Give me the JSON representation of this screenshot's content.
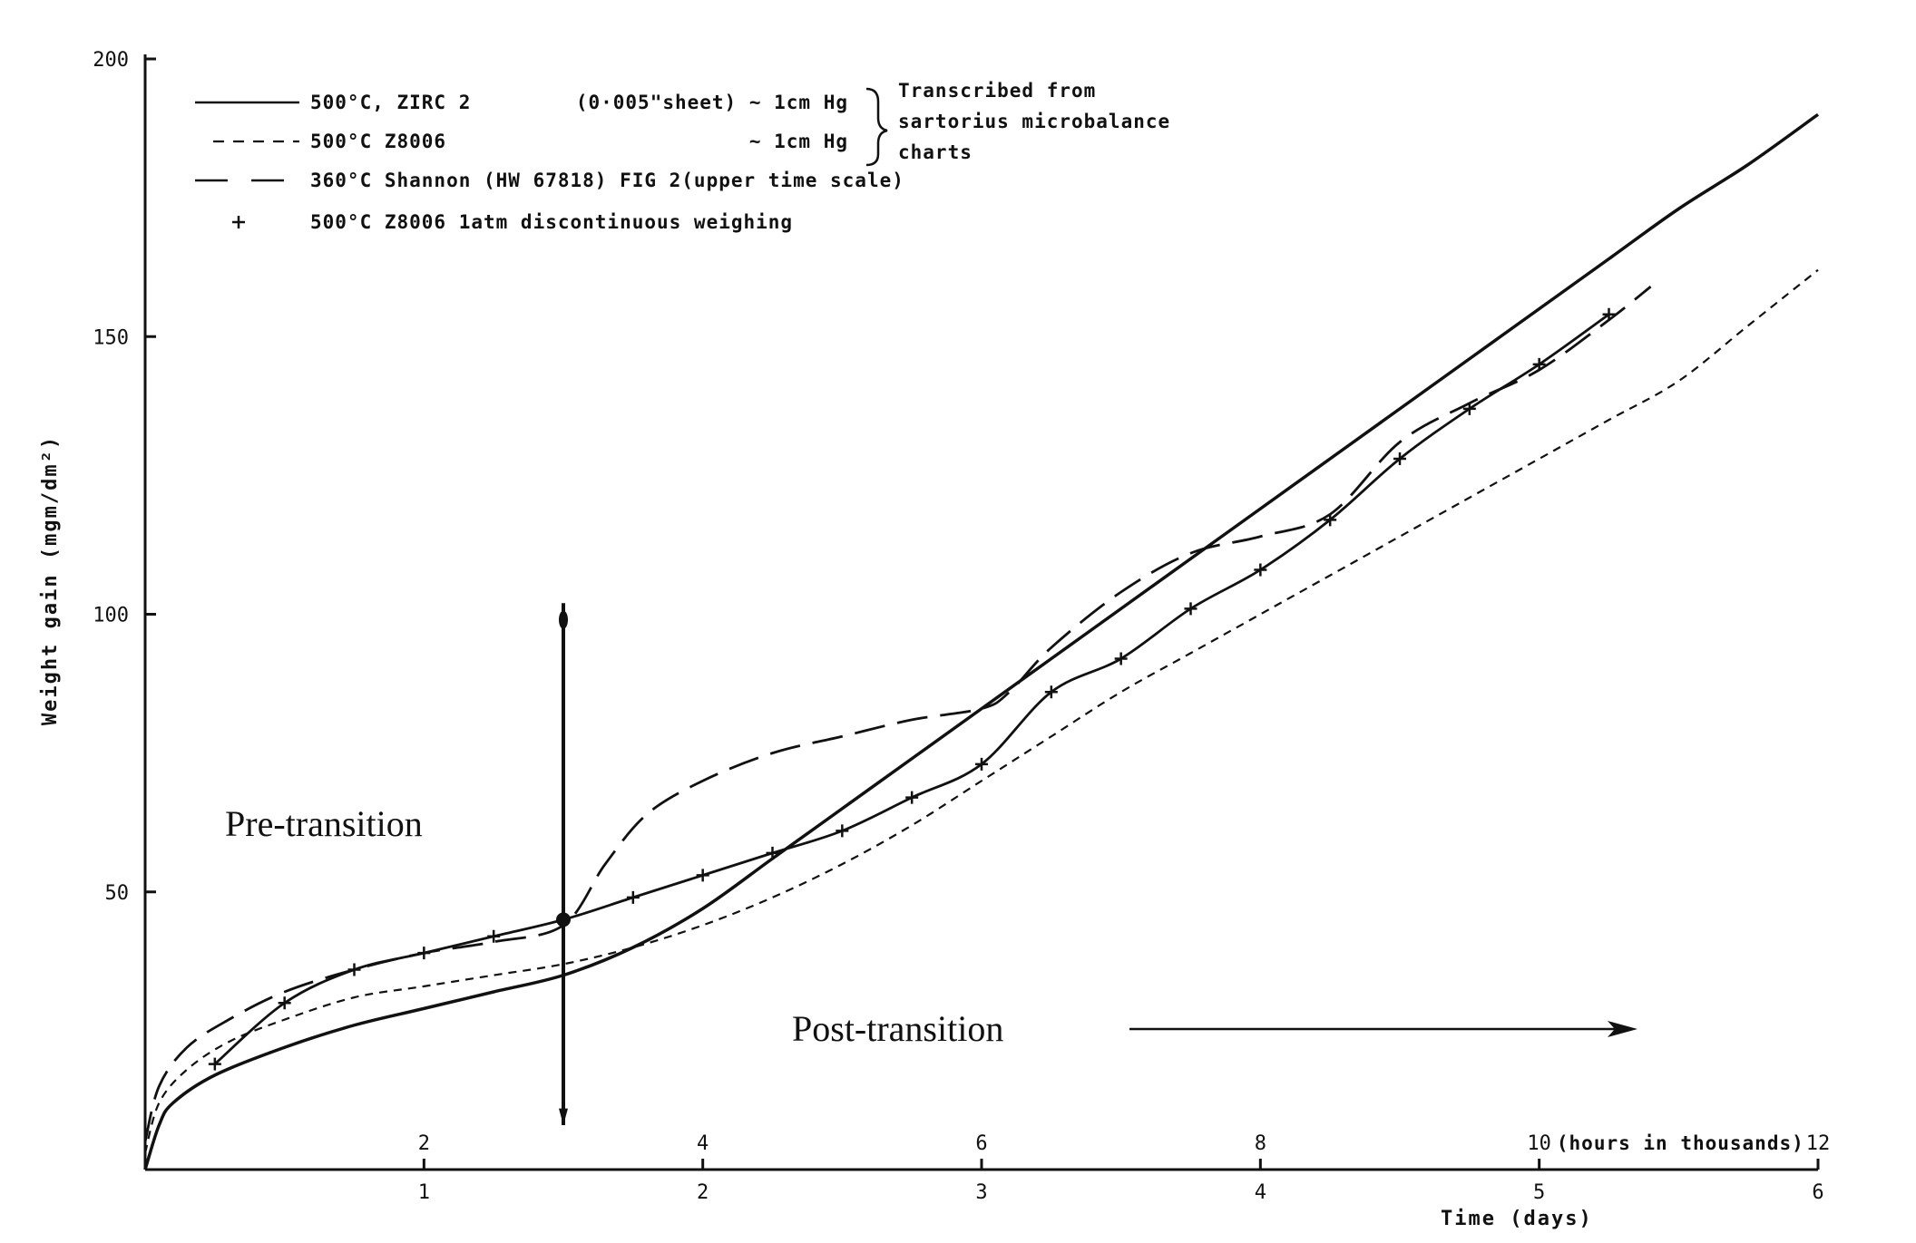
{
  "chart_data": {
    "type": "line",
    "title": "",
    "xlabel": "Time   (days)",
    "ylabel": "Weight gain (mgm/dm²)",
    "xlim": [
      0,
      6
    ],
    "ylim": [
      0,
      200
    ],
    "x_ticks": [
      1,
      2,
      3,
      4,
      5,
      6
    ],
    "y_ticks": [
      50,
      100,
      150,
      200
    ],
    "upper_axis": {
      "ticks": [
        2,
        4,
        6,
        8,
        10,
        12
      ],
      "tick_labels": [
        "2",
        "4",
        "6",
        "8",
        "10",
        "12"
      ],
      "label": "(hours in thousands)",
      "range": [
        0,
        12
      ]
    },
    "legend": {
      "placement": "top-left",
      "entries": [
        {
          "style": "solid",
          "label": "500°C, ZIRC 2",
          "detail": "(0·005\"sheet) ~ 1cm Hg"
        },
        {
          "style": "short-dash",
          "label": "500°C Z8006",
          "detail": "~ 1cm Hg"
        },
        {
          "style": "long-dash",
          "label": "360°C Shannon (HW 67818) FIG 2(upper time scale)",
          "detail": ""
        },
        {
          "style": "plus",
          "label": "500°C Z8006 1atm discontinuous weighing",
          "detail": ""
        }
      ],
      "brace_note": [
        "Transcribed from",
        "sartorius microbalance",
        "charts"
      ]
    },
    "annotations": [
      {
        "text": "Pre-transition"
      },
      {
        "text": "Post-transition"
      }
    ],
    "transition_x": 1.5,
    "series": [
      {
        "name": "500°C, ZIRC 2",
        "style": "solid",
        "x": [
          0,
          0.05,
          0.1,
          0.25,
          0.5,
          0.75,
          1.0,
          1.25,
          1.5,
          1.75,
          2.0,
          2.25,
          2.5,
          2.75,
          3.0,
          3.25,
          3.5,
          3.75,
          4.0,
          4.25,
          4.5,
          4.75,
          5.0,
          5.25,
          5.5,
          5.75,
          6.0
        ],
        "y": [
          0,
          8,
          12,
          17,
          22,
          26,
          29,
          32,
          35,
          40,
          47,
          56,
          65,
          74,
          83,
          92,
          101,
          110,
          119,
          128,
          137,
          146,
          155,
          164,
          173,
          181,
          190
        ]
      },
      {
        "name": "500°C Z8006",
        "style": "short-dash",
        "x": [
          0,
          0.05,
          0.15,
          0.3,
          0.5,
          0.75,
          1.0,
          1.25,
          1.5,
          1.75,
          2.0,
          2.25,
          2.5,
          2.75,
          3.0,
          3.25,
          3.5,
          3.75,
          4.0,
          4.25,
          4.5,
          4.75,
          5.0,
          5.25,
          5.5,
          5.75,
          6.0
        ],
        "y": [
          3,
          12,
          18,
          23,
          27,
          31,
          33,
          35,
          37,
          40,
          44,
          49,
          55,
          62,
          70,
          78,
          86,
          93,
          100,
          107,
          114,
          121,
          128,
          135,
          142,
          152,
          162
        ]
      },
      {
        "name": "360°C Shannon (HW 67818)",
        "style": "long-dash",
        "x": [
          0,
          0.05,
          0.15,
          0.3,
          0.5,
          0.75,
          1.0,
          1.25,
          1.5,
          1.65,
          1.8,
          2.0,
          2.25,
          2.5,
          2.75,
          3.0,
          3.1,
          3.25,
          3.5,
          3.75,
          4.0,
          4.25,
          4.5,
          4.75,
          5.0,
          5.25,
          5.4
        ],
        "y": [
          5,
          15,
          22,
          27,
          32,
          36,
          39,
          41,
          44,
          55,
          64,
          70,
          75,
          78,
          81,
          83,
          86,
          94,
          104,
          111,
          114,
          118,
          131,
          138,
          144,
          153,
          159
        ]
      },
      {
        "name": "500°C Z8006 1atm discontinuous weighing",
        "style": "plus",
        "x": [
          0.25,
          0.5,
          0.75,
          1.0,
          1.25,
          1.5,
          1.75,
          2.0,
          2.25,
          2.5,
          2.75,
          3.0,
          3.25,
          3.5,
          3.75,
          4.0,
          4.25,
          4.5,
          4.75,
          5.0,
          5.25
        ],
        "y": [
          19,
          30,
          36,
          39,
          42,
          45,
          49,
          53,
          57,
          61,
          67,
          73,
          86,
          92,
          101,
          108,
          117,
          128,
          137,
          145,
          154
        ]
      }
    ]
  }
}
